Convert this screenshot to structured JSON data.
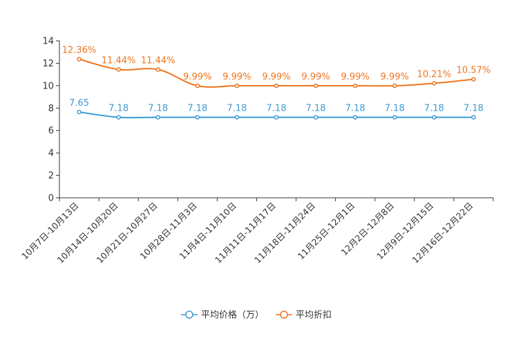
{
  "chart_data": {
    "type": "line",
    "categories": [
      "10月7日-10月13日",
      "10月14日-10月20日",
      "10月21日-10月27日",
      "10月28日-11月3日",
      "11月4日-11月10日",
      "11月11日-11月17日",
      "11月18日-11月24日",
      "11月25日-12月1日",
      "12月2日-12月8日",
      "12月9日-12月15日",
      "12月16日-12月22日"
    ],
    "ylim": [
      0,
      14
    ],
    "yticks": [
      0,
      2,
      4,
      6,
      8,
      10,
      12,
      14
    ],
    "series": [
      {
        "name": "平均价格（万）",
        "color": "#3d9ad1",
        "values": [
          7.65,
          7.18,
          7.18,
          7.18,
          7.18,
          7.18,
          7.18,
          7.18,
          7.18,
          7.18,
          7.18
        ],
        "labels": [
          "7.65",
          "7.18",
          "7.18",
          "7.18",
          "7.18",
          "7.18",
          "7.18",
          "7.18",
          "7.18",
          "7.18",
          "7.18"
        ]
      },
      {
        "name": "平均折扣",
        "color": "#f0741e",
        "values": [
          12.36,
          11.44,
          11.44,
          9.99,
          9.99,
          9.99,
          9.99,
          9.99,
          9.99,
          10.21,
          10.57
        ],
        "labels": [
          "12.36%",
          "11.44%",
          "11.44%",
          "9.99%",
          "9.99%",
          "9.99%",
          "9.99%",
          "9.99%",
          "9.99%",
          "10.21%",
          "10.57%"
        ]
      }
    ],
    "title": "",
    "xlabel": "",
    "ylabel": "",
    "legend_position": "bottom-center",
    "grid": false
  }
}
